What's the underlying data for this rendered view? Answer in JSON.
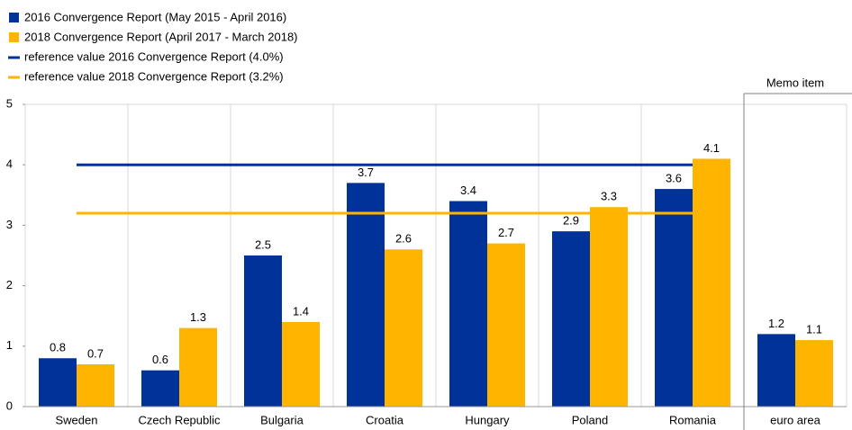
{
  "chart_data": {
    "type": "bar",
    "categories": [
      "Sweden",
      "Czech Republic",
      "Bulgaria",
      "Croatia",
      "Hungary",
      "Poland",
      "Romania",
      "euro area"
    ],
    "series": [
      {
        "name": "2016 Convergence Report (May 2015 - April 2016)",
        "color": "#003299",
        "values": [
          0.8,
          0.6,
          2.5,
          3.7,
          3.4,
          2.9,
          3.6,
          1.2
        ]
      },
      {
        "name": "2018 Convergence Report (April 2017 - March 2018)",
        "color": "#ffb400",
        "values": [
          0.7,
          1.3,
          1.4,
          2.6,
          2.7,
          3.3,
          4.1,
          1.1
        ]
      }
    ],
    "reference_lines": [
      {
        "name": "reference value 2016 Convergence Report (4.0%)",
        "color": "#003299",
        "value": 4.0
      },
      {
        "name": "reference value 2018 Convergence Report (3.2%)",
        "color": "#ffb400",
        "value": 3.2
      }
    ],
    "annotation": "Memo item",
    "ylim": [
      0,
      5
    ],
    "yticks": [
      0,
      1,
      2,
      3,
      4,
      5
    ],
    "grid": true
  }
}
